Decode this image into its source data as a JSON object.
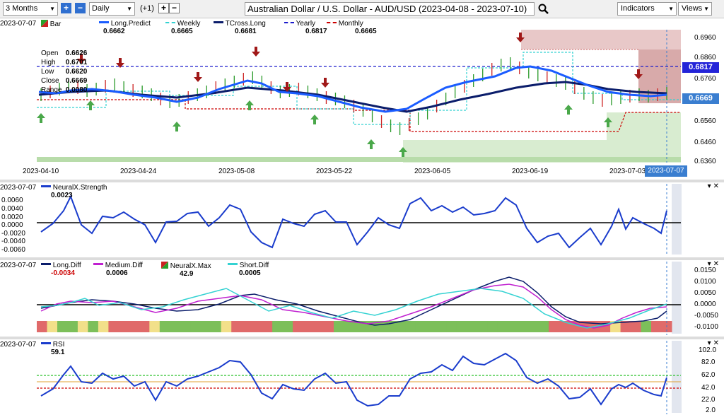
{
  "toolbar": {
    "period": "3 Months",
    "interval": "Daily",
    "offset": "(+1)",
    "title": "Australian Dollar / U.S. Dollar - AUD/USD (2023-04-08 - 2023-07-10)",
    "indicators": "Indicators",
    "views": "Views"
  },
  "main": {
    "date": "2023-07-07",
    "bar_label": "Bar",
    "ohlc": [
      {
        "k": "Open",
        "v": "0.6626"
      },
      {
        "k": "High",
        "v": "0.6701"
      },
      {
        "k": "Low",
        "v": "0.6620"
      },
      {
        "k": "Close",
        "v": "0.6669"
      },
      {
        "k": "Range",
        "v": "0.0080"
      }
    ],
    "legend": [
      {
        "name": "Long.Predict",
        "value": "0.6662",
        "color": "#1a5cff"
      },
      {
        "name": "Weekly",
        "value": "0.6665",
        "color": "#34d2d2"
      },
      {
        "name": "TCross.Long",
        "value": "0.6681",
        "color": "#0b1d6b"
      },
      {
        "name": "Yearly",
        "value": "0.6817",
        "color": "#1a1acc"
      },
      {
        "name": "Monthly",
        "value": "0.6665",
        "color": "#cc0000"
      }
    ],
    "y_ticks": [
      "0.6960",
      "0.6860",
      "0.6760",
      "0.6560",
      "0.6460",
      "0.6360"
    ],
    "x_ticks": [
      "2023-04-10",
      "2023-04-24",
      "2023-05-08",
      "2023-05-22",
      "2023-06-05",
      "2023-06-19",
      "2023-07-03"
    ],
    "yearly_tag": "0.6817",
    "close_tag": "0.6669",
    "date_tag": "2023-07-07"
  },
  "strength": {
    "date": "2023-07-07",
    "name": "NeuralX.Strength",
    "value": "0.0023",
    "y_ticks": [
      "0.0060",
      "0.0040",
      "0.0020",
      "0.0000",
      "-0.0020",
      "-0.0040",
      "-0.0060"
    ]
  },
  "diff": {
    "date": "2023-07-07",
    "legend": [
      {
        "name": "Long.Diff",
        "value": "-0.0034",
        "color": "#0b1d6b"
      },
      {
        "name": "Medium.Diff",
        "value": "0.0006",
        "color": "#c020d0"
      },
      {
        "name": "NeuralX.Max",
        "value": "42.9",
        "color": "#66bb44"
      },
      {
        "name": "Short.Diff",
        "value": "0.0005",
        "color": "#34d2d2"
      }
    ],
    "y_ticks": [
      "0.0150",
      "0.0100",
      "0.0050",
      "0.0000",
      "-0.0050",
      "-0.0100"
    ]
  },
  "rsi": {
    "date": "2023-07-07",
    "name": "RSI",
    "value": "59.1",
    "y_ticks": [
      "102.0",
      "82.0",
      "62.0",
      "42.0",
      "22.0",
      "2.0"
    ]
  }
}
